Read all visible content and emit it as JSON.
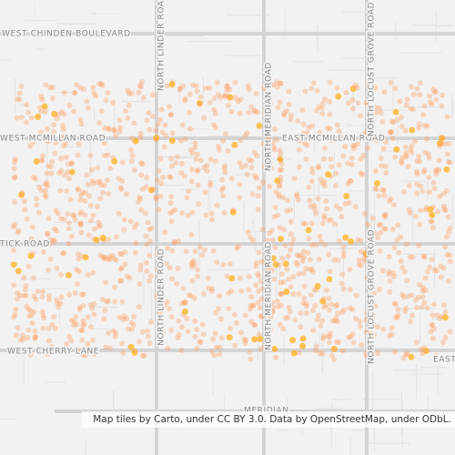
{
  "map": {
    "labels": [
      "WEST CHINDEN BOULEVARD",
      "NORTH LINDER ROAD",
      "NORTH LINDER ROAD",
      "WEST MCMILLAN ROAD",
      "EAST MCMILLAN ROAD",
      "NORTH MERIDIAN ROAD",
      "NORTH MERIDIAN ROAD",
      "NORTH LOCUST GROVE ROAD",
      "NORTH LOCUST GROVE ROAD",
      "TICK ROAD",
      "WEST CHERRY LANE",
      "EAST",
      "MERIDIAN"
    ],
    "attribution": "Map tiles by Carto, under CC BY 3.0. Data by OpenStreetMap, under ODbL."
  }
}
